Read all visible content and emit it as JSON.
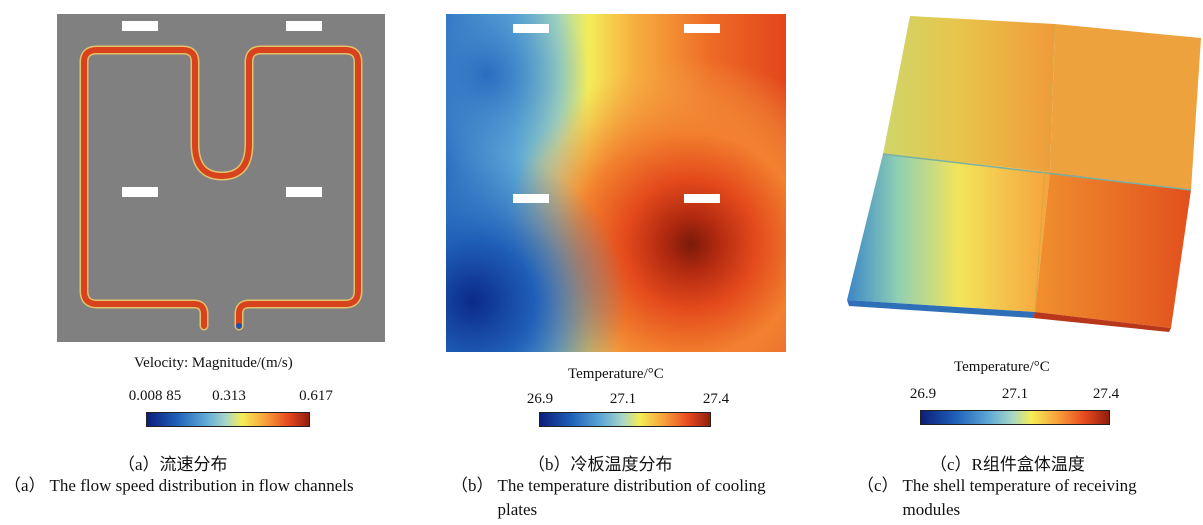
{
  "panels": [
    {
      "colorbar_title": "Velocity: Magnitude/(m/s)",
      "ticks": [
        "0.008 85",
        "0.313",
        "0.617"
      ],
      "caption_cn": "（a）流速分布",
      "caption_en_prefix": "（a）",
      "caption_en": "The flow speed distribution in flow channels"
    },
    {
      "colorbar_title": "Temperature/°C",
      "ticks": [
        "26.9",
        "27.1",
        "27.4"
      ],
      "caption_cn": "（b）冷板温度分布",
      "caption_en_prefix": "（b）",
      "caption_en": "The temperature distribution of cooling plates"
    },
    {
      "colorbar_title": "Temperature/°C",
      "ticks": [
        "26.9",
        "27.1",
        "27.4"
      ],
      "caption_cn": "（c）R组件盒体温度",
      "caption_en_prefix": "（c）",
      "caption_en": "The shell temperature of receiving modules"
    }
  ],
  "colors": {
    "background_gray": "#808080",
    "colormap": [
      "#0b1f7a",
      "#1f5fb8",
      "#5aa6d6",
      "#a6d6c8",
      "#f5ee55",
      "#f8a03a",
      "#e84a1f",
      "#8a1a0a"
    ]
  }
}
